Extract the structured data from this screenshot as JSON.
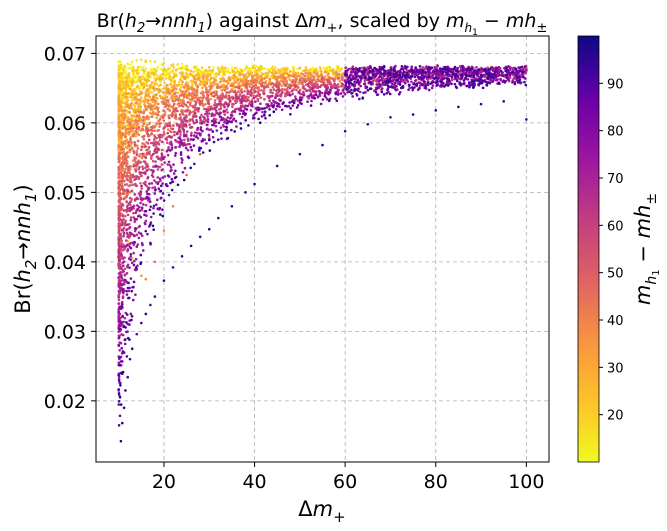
{
  "chart_data": {
    "type": "scatter",
    "title": "Br(h₂→nnh₁) against Δm₊, scaled by mₕ₁ − mh±",
    "title_parts": {
      "pre": "Br(",
      "h": "h",
      "h_sub": "2",
      "arrow": "→",
      "nnh": "nnh",
      "nnh_sub": "1",
      "mid": ") against Δ",
      "m": "m",
      "m_sub": "+",
      "scaled": ", scaled by ",
      "mh": "m",
      "mh_sub": "h",
      "mh_subsub": "1",
      "minus": " − ",
      "mhpm": "mh",
      "mhpm_sub": "±"
    },
    "xlabel": "Δm+",
    "xlabel_parts": {
      "delta": "Δ",
      "m": "m",
      "sub": "+"
    },
    "ylabel": "Br(h2→nnh1)",
    "ylabel_parts": {
      "pre": "Br(",
      "h": "h",
      "h_sub": "2",
      "arrow": "→",
      "nnh": "nnh",
      "nnh_sub": "1",
      "post": ")"
    },
    "colorbar_label": "m_h1 − mh±",
    "colorbar_parts": {
      "m": "m",
      "sub": "h",
      "subsub": "1",
      "minus": " − ",
      "mh": "mh",
      "pm": "±"
    },
    "xlim": [
      5,
      105
    ],
    "ylim": [
      0.0112,
      0.0725
    ],
    "clim": [
      10,
      100
    ],
    "xticks": [
      20,
      40,
      60,
      80,
      100
    ],
    "yticks": [
      0.02,
      0.03,
      0.04,
      0.05,
      0.06,
      0.07
    ],
    "ytick_labels": [
      "0.02",
      "0.03",
      "0.04",
      "0.05",
      "0.06",
      "0.07"
    ],
    "cticks": [
      20,
      30,
      40,
      50,
      60,
      70,
      80,
      90
    ],
    "colormap": "plasma",
    "grid": true,
    "grid_style": "dashed",
    "plateau": 0.0679,
    "series": [
      {
        "x": [
          10.5,
          10.8,
          11.2,
          11.5,
          12,
          12.5,
          13,
          14,
          15,
          16,
          17,
          18,
          20,
          22,
          24,
          26,
          28,
          30,
          32,
          35,
          38,
          40,
          45,
          50,
          55,
          60,
          65,
          70,
          75,
          80,
          85,
          90,
          95,
          100
        ],
        "y": [
          0.0142,
          0.0168,
          0.019,
          0.0215,
          0.0234,
          0.026,
          0.0275,
          0.0296,
          0.0312,
          0.0325,
          0.0338,
          0.035,
          0.0373,
          0.0392,
          0.0408,
          0.0423,
          0.0436,
          0.0447,
          0.0463,
          0.048,
          0.05,
          0.0512,
          0.0538,
          0.0555,
          0.0568,
          0.0588,
          0.0598,
          0.0608,
          0.0612,
          0.0618,
          0.0623,
          0.0627,
          0.0631,
          0.0605
        ],
        "c": [
          98,
          97,
          95,
          96,
          94,
          92,
          95,
          90,
          93,
          96,
          88,
          94,
          97,
          92,
          95,
          98,
          91,
          96,
          94,
          97,
          92,
          98,
          95,
          93,
          97,
          94,
          96,
          92,
          98,
          95,
          97,
          93,
          96,
          94
        ]
      },
      {
        "x": [
          10.2,
          10.5,
          11,
          11.5,
          12,
          13,
          14,
          15,
          16,
          18,
          20,
          22,
          25,
          28,
          30,
          35,
          40,
          45,
          50,
          55,
          60,
          65,
          70,
          80,
          90,
          100
        ],
        "y": [
          0.058,
          0.054,
          0.05,
          0.046,
          0.043,
          0.0405,
          0.039,
          0.038,
          0.0375,
          0.04,
          0.0445,
          0.048,
          0.0525,
          0.0555,
          0.058,
          0.0615,
          0.0638,
          0.0652,
          0.066,
          0.0665,
          0.0669,
          0.0672,
          0.0674,
          0.0676,
          0.0677,
          0.0678
        ],
        "c": [
          12,
          14,
          15,
          18,
          22,
          26,
          30,
          35,
          40,
          45,
          38,
          42,
          48,
          52,
          55,
          60,
          64,
          68,
          70,
          72,
          74,
          76,
          78,
          80,
          82,
          84
        ]
      },
      {
        "x": [
          10,
          10.5,
          11,
          12,
          13,
          14,
          15,
          16,
          17,
          18,
          20,
          22,
          25,
          30,
          40,
          50,
          60,
          70,
          80,
          90,
          100
        ],
        "y": [
          0.0675,
          0.0678,
          0.068,
          0.0685,
          0.0688,
          0.069,
          0.0691,
          0.069,
          0.0689,
          0.0688,
          0.0686,
          0.0684,
          0.0682,
          0.068,
          0.0679,
          0.0679,
          0.0679,
          0.0679,
          0.0679,
          0.0679,
          0.0679
        ],
        "c": [
          11,
          12,
          13,
          14,
          12,
          13,
          15,
          14,
          13,
          16,
          18,
          20,
          22,
          25,
          28,
          30,
          32,
          35,
          38,
          40,
          42
        ]
      }
    ]
  }
}
